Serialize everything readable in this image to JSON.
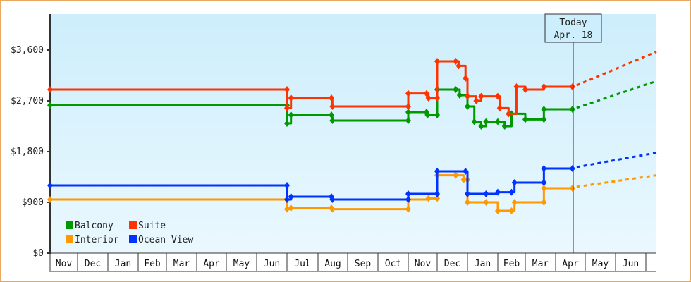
{
  "chart_data": {
    "type": "line",
    "title": "",
    "xlabel": "",
    "ylabel": "",
    "ylim": [
      0,
      4200
    ],
    "yticks": [
      "$0",
      "$900",
      "$1,800",
      "$2,700",
      "$3,600"
    ],
    "ytick_values": [
      0,
      900,
      1800,
      2700,
      3600
    ],
    "months": [
      "Nov",
      "Dec",
      "Jan",
      "Feb",
      "Mar",
      "Apr",
      "May",
      "Jun",
      "Jul",
      "Aug",
      "Sep",
      "Oct",
      "Nov",
      "Dec",
      "Jan",
      "Feb",
      "Mar",
      "Apr",
      "May",
      "Jun"
    ],
    "grid": false,
    "legend_position": "bottom-left inside",
    "today_marker": {
      "line1": "Today",
      "line2": "Apr. 18"
    },
    "series": [
      {
        "name": "Balcony",
        "color": "#009900",
        "step_points": [
          [
            "Nov 1",
            2620
          ],
          [
            "Jul 1",
            2620
          ],
          [
            "Jul 1",
            2300
          ],
          [
            "Jul 5",
            2450
          ],
          [
            "Aug 15",
            2450
          ],
          [
            "Aug 16",
            2350
          ],
          [
            "Nov 1",
            2350
          ],
          [
            "Nov 1",
            2500
          ],
          [
            "Nov 20",
            2500
          ],
          [
            "Nov 21",
            2450
          ],
          [
            "Dec 1",
            2450
          ],
          [
            "Dec 1",
            2900
          ],
          [
            "Dec 20",
            2900
          ],
          [
            "Dec 24",
            2800
          ],
          [
            "Jan 1",
            2600
          ],
          [
            "Jan 8",
            2330
          ],
          [
            "Jan 15",
            2250
          ],
          [
            "Jan 20",
            2330
          ],
          [
            "Feb 1",
            2330
          ],
          [
            "Feb 8",
            2250
          ],
          [
            "Feb 15",
            2470
          ],
          [
            "Mar 1",
            2370
          ],
          [
            "Mar 20",
            2370
          ],
          [
            "Mar 20",
            2550
          ],
          [
            "Apr 18",
            2550
          ]
        ],
        "projection_end": [
          "Jun 30",
          3050
        ]
      },
      {
        "name": "Suite",
        "color": "#ff3300",
        "step_points": [
          [
            "Nov 1",
            2900
          ],
          [
            "Jul 1",
            2900
          ],
          [
            "Jul 1",
            2570
          ],
          [
            "Jul 5",
            2750
          ],
          [
            "Aug 15",
            2750
          ],
          [
            "Aug 16",
            2600
          ],
          [
            "Nov 1",
            2600
          ],
          [
            "Nov 1",
            2830
          ],
          [
            "Nov 20",
            2830
          ],
          [
            "Nov 22",
            2750
          ],
          [
            "Dec 1",
            2750
          ],
          [
            "Dec 1",
            3400
          ],
          [
            "Dec 20",
            3400
          ],
          [
            "Dec 23",
            3320
          ],
          [
            "Dec 30",
            3100
          ],
          [
            "Jan 1",
            2780
          ],
          [
            "Jan 10",
            2700
          ],
          [
            "Jan 15",
            2780
          ],
          [
            "Feb 1",
            2780
          ],
          [
            "Feb 3",
            2570
          ],
          [
            "Feb 12",
            2470
          ],
          [
            "Feb 20",
            2950
          ],
          [
            "Mar 1",
            2900
          ],
          [
            "Mar 20",
            2950
          ],
          [
            "Apr 18",
            2950
          ]
        ],
        "projection_end": [
          "Jun 30",
          3570
        ]
      },
      {
        "name": "Interior",
        "color": "#ff9900",
        "step_points": [
          [
            "Nov 1",
            950
          ],
          [
            "Jul 1",
            950
          ],
          [
            "Jul 1",
            780
          ],
          [
            "Jul 5",
            800
          ],
          [
            "Aug 15",
            800
          ],
          [
            "Aug 16",
            780
          ],
          [
            "Nov 1",
            780
          ],
          [
            "Nov 1",
            950
          ],
          [
            "Nov 22",
            970
          ],
          [
            "Dec 1",
            970
          ],
          [
            "Dec 1",
            1380
          ],
          [
            "Dec 20",
            1380
          ],
          [
            "Dec 28",
            1300
          ],
          [
            "Jan 1",
            1300
          ],
          [
            "Jan 1",
            900
          ],
          [
            "Jan 20",
            900
          ],
          [
            "Feb 1",
            750
          ],
          [
            "Feb 15",
            750
          ],
          [
            "Feb 18",
            900
          ],
          [
            "Mar 20",
            900
          ],
          [
            "Mar 20",
            1150
          ],
          [
            "Apr 18",
            1150
          ]
        ],
        "projection_end": [
          "Jun 30",
          1380
        ]
      },
      {
        "name": "Ocean View",
        "color": "#0033ff",
        "step_points": [
          [
            "Nov 1",
            1200
          ],
          [
            "Jul 1",
            1200
          ],
          [
            "Jul 1",
            950
          ],
          [
            "Jul 5",
            1000
          ],
          [
            "Aug 15",
            1000
          ],
          [
            "Aug 16",
            950
          ],
          [
            "Nov 1",
            950
          ],
          [
            "Nov 1",
            1050
          ],
          [
            "Dec 1",
            1050
          ],
          [
            "Dec 1",
            1450
          ],
          [
            "Dec 30",
            1450
          ],
          [
            "Jan 1",
            1050
          ],
          [
            "Jan 20",
            1050
          ],
          [
            "Feb 1",
            1080
          ],
          [
            "Feb 15",
            1080
          ],
          [
            "Feb 18",
            1250
          ],
          [
            "Mar 20",
            1250
          ],
          [
            "Mar 20",
            1500
          ],
          [
            "Apr 18",
            1500
          ]
        ],
        "projection_end": [
          "Jun 30",
          1780
        ]
      }
    ]
  },
  "legend": {
    "items": [
      {
        "label": "Balcony",
        "color": "#009900"
      },
      {
        "label": "Suite",
        "color": "#ff3300"
      },
      {
        "label": "Interior",
        "color": "#ff9900"
      },
      {
        "label": "Ocean View",
        "color": "#0033ff"
      }
    ]
  }
}
